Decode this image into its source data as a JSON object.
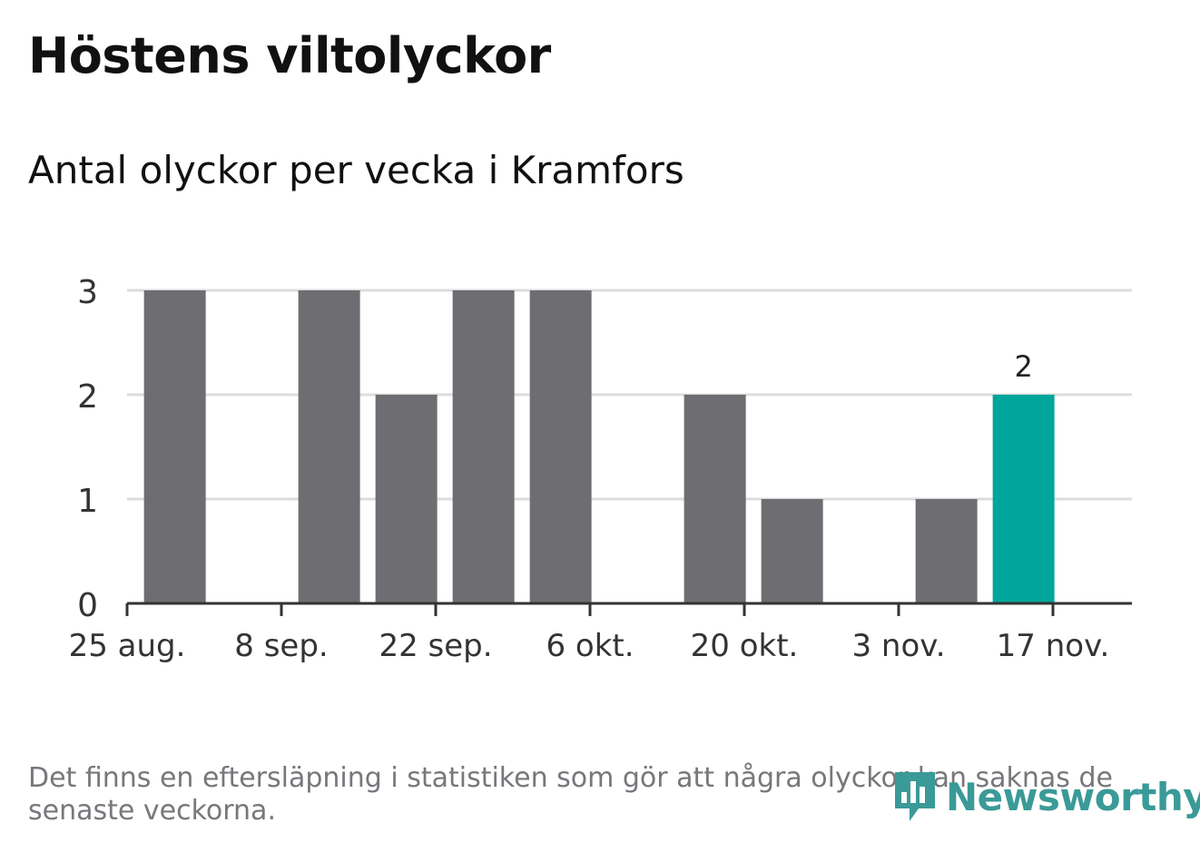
{
  "title": "Höstens viltolyckor",
  "subtitle": "Antal olyckor per vecka i Kramfors",
  "footnote": "Det finns en eftersläpning i statistiken som gör att några olyckor kan saknas de senaste veckorna.",
  "logo": {
    "text": "Newsworthy",
    "icon": "newsworthy-chart-bubble-icon"
  },
  "colors": {
    "bar": "#6e6d72",
    "highlight": "#00a59b",
    "grid": "#dcdcdc",
    "axis": "#333333"
  },
  "chart_data": {
    "type": "bar",
    "x": [
      "2019-08-26",
      "2019-09-02",
      "2019-09-09",
      "2019-09-16",
      "2019-09-23",
      "2019-09-30",
      "2019-10-07",
      "2019-10-14",
      "2019-10-21",
      "2019-10-28",
      "2019-11-04",
      "2019-11-11"
    ],
    "values": [
      3,
      0,
      3,
      2,
      3,
      3,
      0,
      2,
      1,
      0,
      1,
      2
    ],
    "highlight_index": 11,
    "data_labels": [
      {
        "index": 11,
        "text": "2"
      }
    ],
    "x_ticks": [
      "25 aug.",
      "8 sep.",
      "22 sep.",
      "6 okt.",
      "20 okt.",
      "3 nov.",
      "17 nov."
    ],
    "y_ticks": [
      "0",
      "1",
      "2",
      "3"
    ],
    "ylim": [
      0,
      3
    ],
    "grid": true,
    "xlabel": "",
    "ylabel": ""
  }
}
